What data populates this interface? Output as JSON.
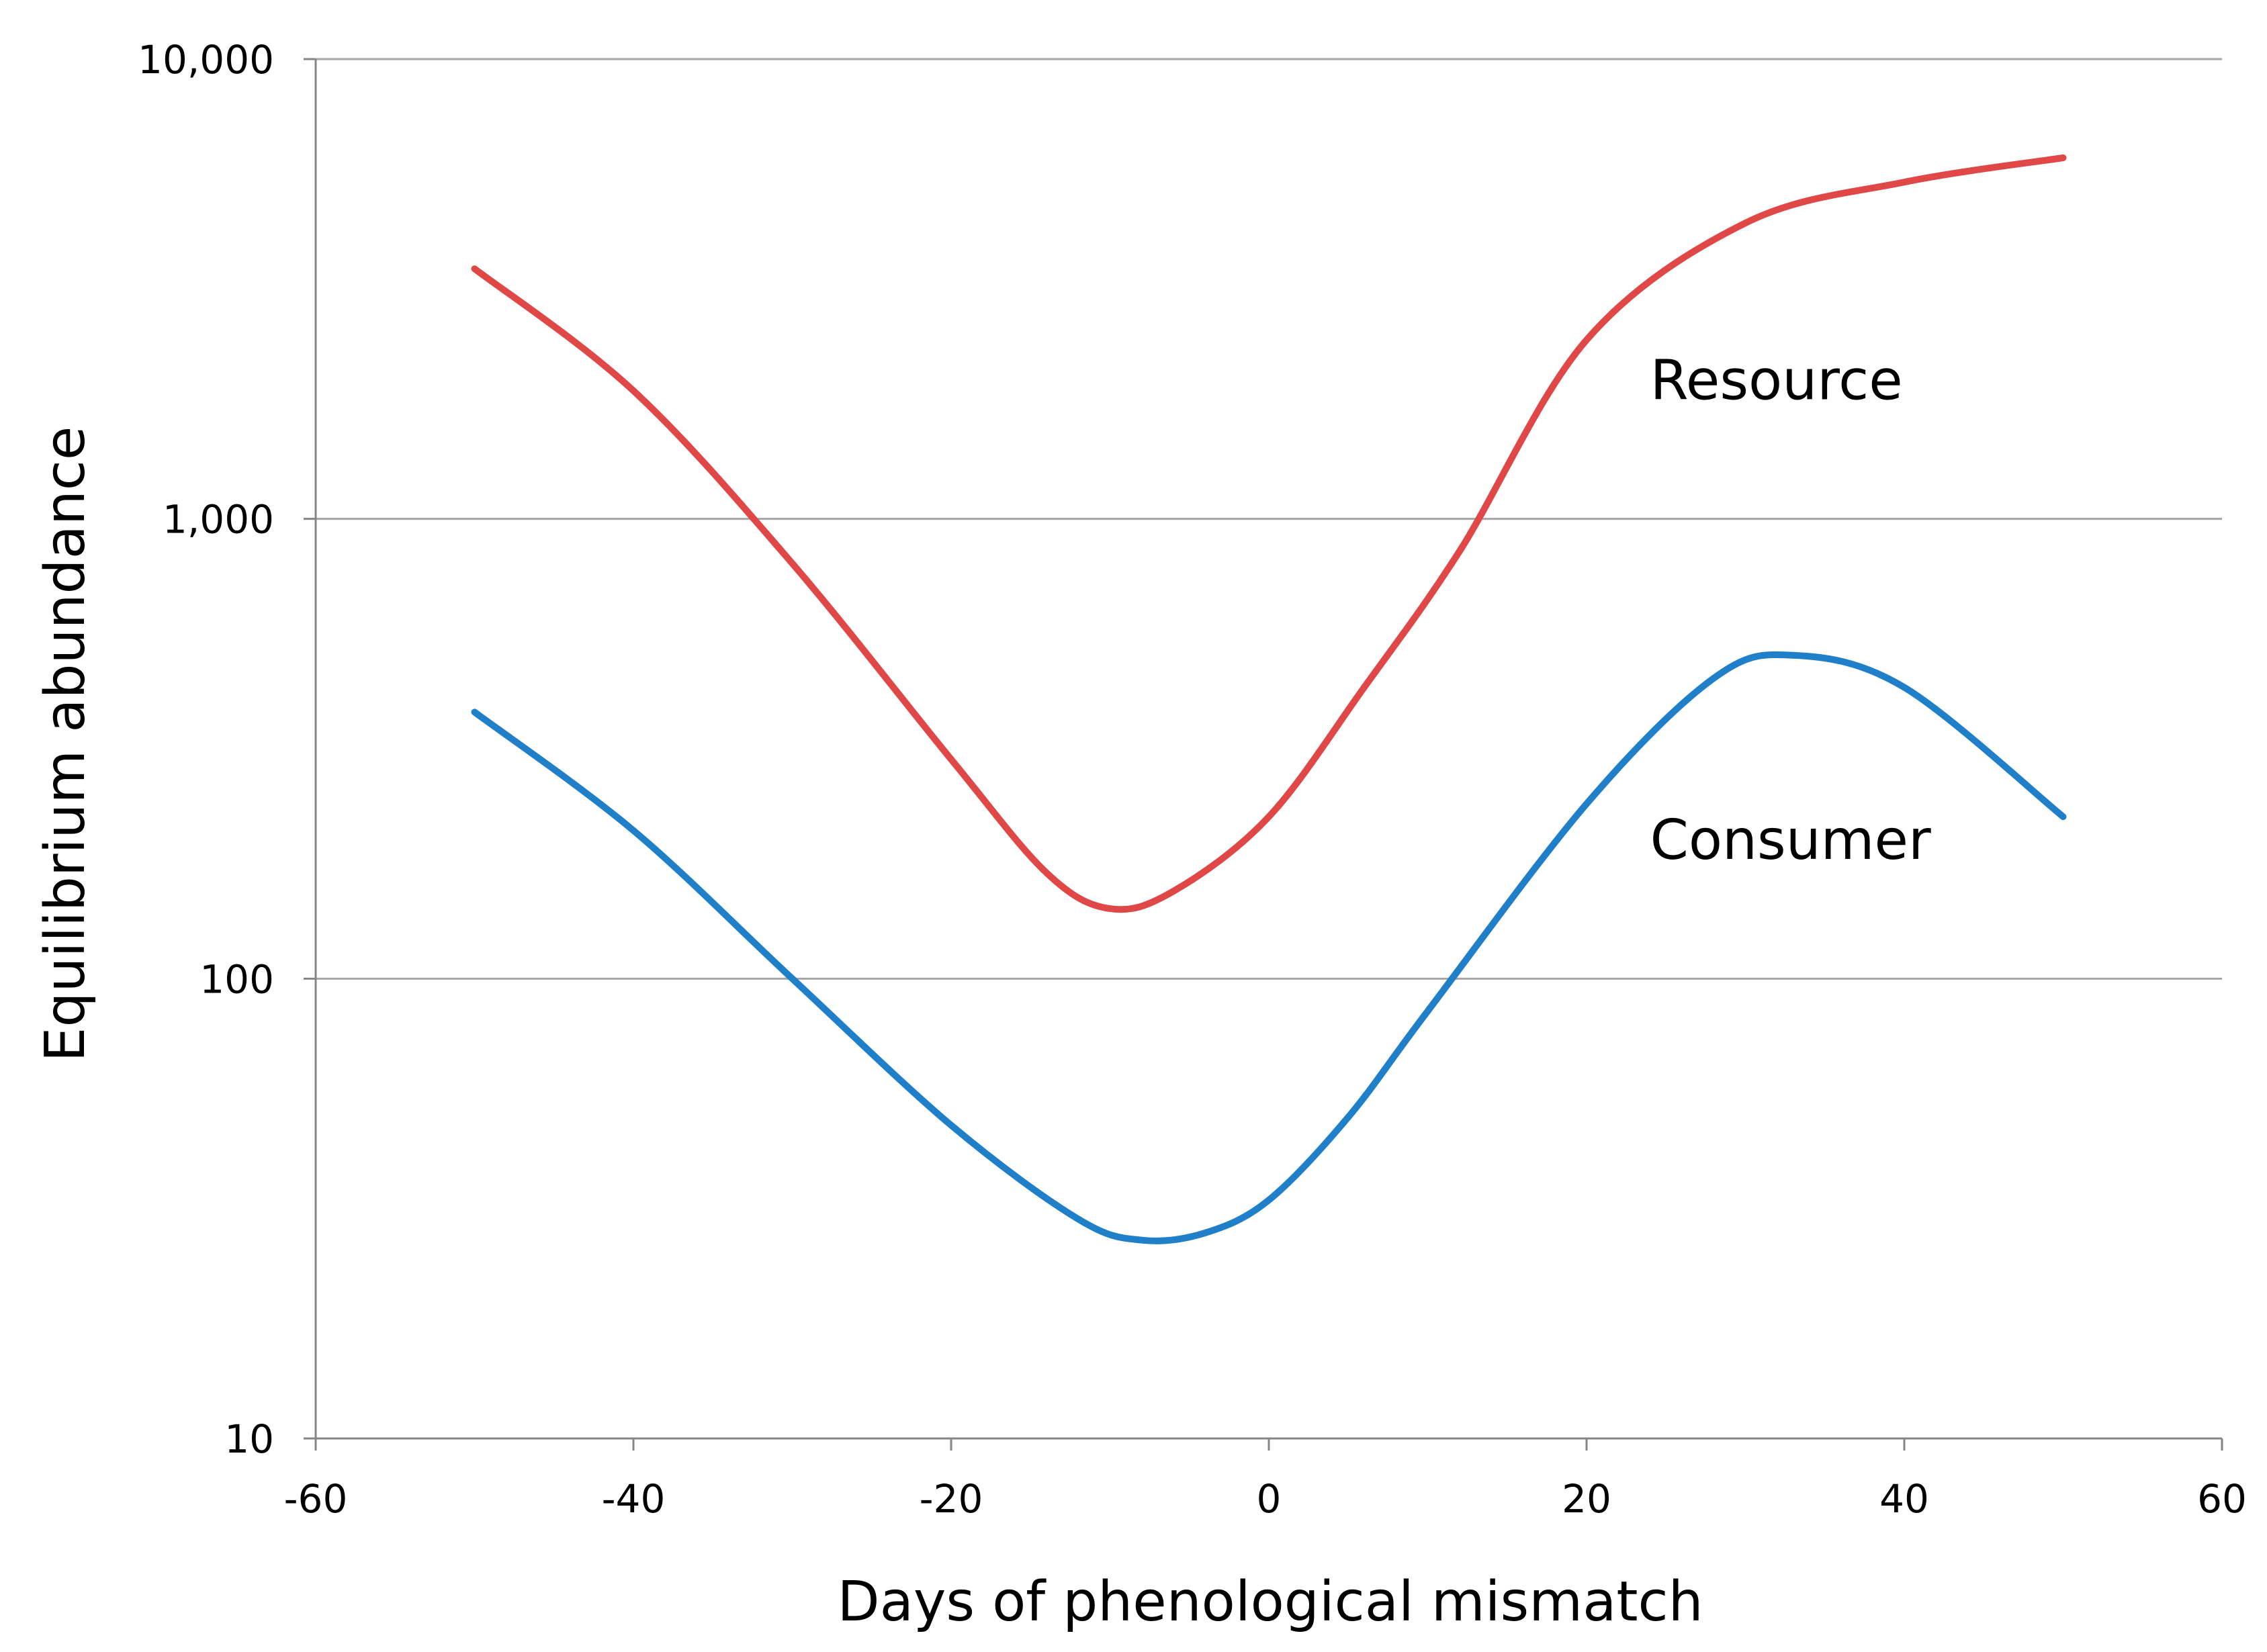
{
  "chart_data": {
    "type": "line",
    "title": "",
    "xlabel": "Days of phenological mismatch",
    "ylabel": "Equilibrium abundance",
    "xlim": [
      -60,
      60
    ],
    "ylim": [
      10,
      10000
    ],
    "yscale": "log",
    "grid": "horizontal",
    "x_ticks": [
      -60,
      -40,
      -20,
      0,
      20,
      40,
      60
    ],
    "x_tick_labels": [
      "-60",
      "-40",
      "-20",
      "0",
      "20",
      "40",
      "60"
    ],
    "y_ticks": [
      10,
      100,
      1000,
      10000
    ],
    "y_tick_labels": [
      "10",
      "100",
      "1,000",
      "10,000"
    ],
    "series": [
      {
        "name": "Resource",
        "color": "#e04848",
        "label_at": [
          24,
          2000
        ],
        "x": [
          -50,
          -40,
          -30,
          -20,
          -14,
          -10,
          -6,
          0,
          6,
          12,
          20,
          30,
          40,
          50
        ],
        "y": [
          3500,
          1900,
          800,
          300,
          170,
          142,
          155,
          225,
          430,
          850,
          2450,
          4400,
          5400,
          6100
        ]
      },
      {
        "name": "Consumer",
        "color": "#1f7fc8",
        "label_at": [
          24,
          200
        ],
        "x": [
          -50,
          -40,
          -30,
          -20,
          -12,
          -8,
          -4,
          0,
          5,
          10,
          20,
          28,
          33,
          40,
          50
        ],
        "y": [
          380,
          210,
          100,
          48,
          30,
          27,
          28,
          33,
          50,
          85,
          240,
          450,
          505,
          430,
          225
        ]
      }
    ]
  }
}
